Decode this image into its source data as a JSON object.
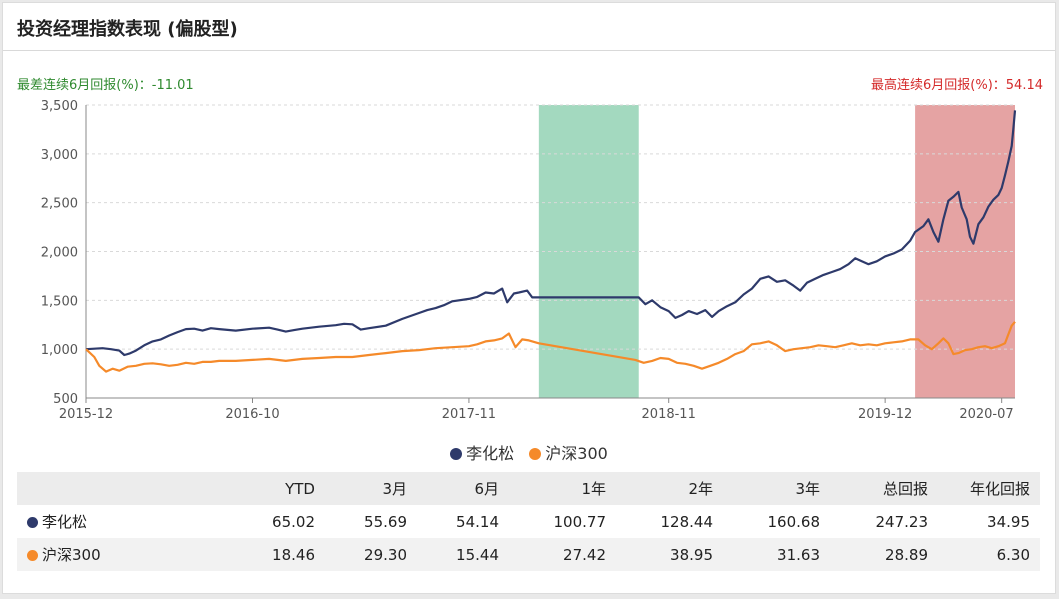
{
  "title": "投资经理指数表现 (偏股型)",
  "worst6m": "最差连续6月回报(%)：-11.01",
  "best6m": "最高连续6月回报(%)：54.14",
  "colors": {
    "manager": "#2e3a6b",
    "index": "#f58a2a",
    "good_band": "#a3d9bf",
    "bad_band": "#e5a3a3"
  },
  "chart_data": {
    "type": "line",
    "title": "",
    "ylim": [
      500,
      3500
    ],
    "yticks": [
      "500",
      "1,000",
      "1,500",
      "2,000",
      "2,500",
      "3,000",
      "3,500"
    ],
    "yvalues": [
      500,
      1000,
      1500,
      2000,
      2500,
      3000,
      3500
    ],
    "xlim": [
      "2015-12",
      "2020-07"
    ],
    "xticks": [
      {
        "label": "2015-12",
        "t": 0
      },
      {
        "label": "2016-10",
        "t": 10
      },
      {
        "label": "2017-11",
        "t": 23
      },
      {
        "label": "2018-11",
        "t": 35
      },
      {
        "label": "2019-12",
        "t": 48
      },
      {
        "label": "2020-07",
        "t": 55
      }
    ],
    "grid": true,
    "legend_position": "bottom",
    "bands": [
      {
        "type": "worst_6m",
        "start": 27.2,
        "end": 33.2
      },
      {
        "type": "best_6m",
        "start": 49.8,
        "end": 55.8
      }
    ],
    "series": [
      {
        "name": "李化松",
        "color": "#2e3a6b",
        "points": [
          [
            0,
            1000
          ],
          [
            1,
            1010
          ],
          [
            1.5,
            1000
          ],
          [
            2,
            985
          ],
          [
            2.3,
            940
          ],
          [
            2.6,
            955
          ],
          [
            3,
            985
          ],
          [
            3.5,
            1040
          ],
          [
            4,
            1080
          ],
          [
            4.5,
            1100
          ],
          [
            5,
            1140
          ],
          [
            5.5,
            1175
          ],
          [
            6,
            1205
          ],
          [
            6.5,
            1210
          ],
          [
            7,
            1190
          ],
          [
            7.5,
            1215
          ],
          [
            8,
            1205
          ],
          [
            9,
            1190
          ],
          [
            10,
            1210
          ],
          [
            11,
            1220
          ],
          [
            11.5,
            1200
          ],
          [
            12,
            1180
          ],
          [
            12.5,
            1195
          ],
          [
            13,
            1210
          ],
          [
            14,
            1230
          ],
          [
            15,
            1245
          ],
          [
            15.5,
            1260
          ],
          [
            16,
            1255
          ],
          [
            16.5,
            1200
          ],
          [
            17,
            1215
          ],
          [
            18,
            1240
          ],
          [
            19,
            1310
          ],
          [
            20,
            1370
          ],
          [
            20.5,
            1400
          ],
          [
            21,
            1420
          ],
          [
            21.5,
            1450
          ],
          [
            22,
            1490
          ],
          [
            23,
            1515
          ],
          [
            23.5,
            1535
          ],
          [
            24,
            1580
          ],
          [
            24.5,
            1570
          ],
          [
            25,
            1620
          ],
          [
            25.3,
            1480
          ],
          [
            25.7,
            1570
          ],
          [
            26,
            1580
          ],
          [
            26.5,
            1600
          ],
          [
            26.8,
            1530
          ],
          [
            27.2,
            1530
          ],
          [
            33.2,
            1530
          ],
          [
            33.6,
            1460
          ],
          [
            34,
            1500
          ],
          [
            34.5,
            1430
          ],
          [
            35,
            1390
          ],
          [
            35.4,
            1320
          ],
          [
            35.8,
            1350
          ],
          [
            36.2,
            1390
          ],
          [
            36.7,
            1360
          ],
          [
            37.2,
            1400
          ],
          [
            37.6,
            1330
          ],
          [
            38,
            1390
          ],
          [
            38.5,
            1440
          ],
          [
            39,
            1480
          ],
          [
            39.5,
            1560
          ],
          [
            40,
            1620
          ],
          [
            40.5,
            1720
          ],
          [
            41,
            1745
          ],
          [
            41.5,
            1690
          ],
          [
            42,
            1705
          ],
          [
            42.5,
            1650
          ],
          [
            42.9,
            1600
          ],
          [
            43.3,
            1680
          ],
          [
            43.8,
            1720
          ],
          [
            44.3,
            1760
          ],
          [
            44.8,
            1790
          ],
          [
            45.3,
            1820
          ],
          [
            45.8,
            1870
          ],
          [
            46.2,
            1930
          ],
          [
            46.6,
            1900
          ],
          [
            47,
            1870
          ],
          [
            47.5,
            1900
          ],
          [
            48,
            1950
          ],
          [
            48.5,
            1980
          ],
          [
            49,
            2020
          ],
          [
            49.5,
            2110
          ],
          [
            49.8,
            2200
          ],
          [
            50.3,
            2260
          ],
          [
            50.6,
            2330
          ],
          [
            50.9,
            2200
          ],
          [
            51.2,
            2100
          ],
          [
            51.5,
            2330
          ],
          [
            51.8,
            2520
          ],
          [
            52.1,
            2560
          ],
          [
            52.4,
            2610
          ],
          [
            52.6,
            2450
          ],
          [
            52.9,
            2330
          ],
          [
            53.1,
            2150
          ],
          [
            53.3,
            2080
          ],
          [
            53.6,
            2280
          ],
          [
            53.9,
            2350
          ],
          [
            54.2,
            2460
          ],
          [
            54.5,
            2530
          ],
          [
            54.8,
            2580
          ],
          [
            55,
            2650
          ],
          [
            55.2,
            2780
          ],
          [
            55.4,
            2920
          ],
          [
            55.6,
            3080
          ],
          [
            55.7,
            3250
          ],
          [
            55.8,
            3445
          ]
        ]
      },
      {
        "name": "沪深300",
        "color": "#f58a2a",
        "points": [
          [
            0,
            1000
          ],
          [
            0.5,
            920
          ],
          [
            0.8,
            830
          ],
          [
            1.2,
            770
          ],
          [
            1.6,
            800
          ],
          [
            2,
            780
          ],
          [
            2.5,
            820
          ],
          [
            3,
            830
          ],
          [
            3.5,
            850
          ],
          [
            4,
            855
          ],
          [
            4.5,
            845
          ],
          [
            5,
            830
          ],
          [
            5.5,
            840
          ],
          [
            6,
            860
          ],
          [
            6.5,
            850
          ],
          [
            7,
            870
          ],
          [
            7.5,
            870
          ],
          [
            8,
            880
          ],
          [
            9,
            880
          ],
          [
            10,
            890
          ],
          [
            11,
            900
          ],
          [
            12,
            880
          ],
          [
            13,
            900
          ],
          [
            14,
            910
          ],
          [
            15,
            920
          ],
          [
            16,
            920
          ],
          [
            17,
            940
          ],
          [
            18,
            960
          ],
          [
            19,
            980
          ],
          [
            20,
            990
          ],
          [
            21,
            1010
          ],
          [
            22,
            1020
          ],
          [
            23,
            1030
          ],
          [
            23.5,
            1050
          ],
          [
            24,
            1080
          ],
          [
            24.5,
            1090
          ],
          [
            25,
            1110
          ],
          [
            25.4,
            1160
          ],
          [
            25.8,
            1020
          ],
          [
            26.2,
            1100
          ],
          [
            26.6,
            1090
          ],
          [
            27.2,
            1060
          ],
          [
            33,
            890
          ],
          [
            33.5,
            860
          ],
          [
            34,
            880
          ],
          [
            34.5,
            910
          ],
          [
            35,
            900
          ],
          [
            35.5,
            860
          ],
          [
            36,
            850
          ],
          [
            36.5,
            830
          ],
          [
            37,
            800
          ],
          [
            37.5,
            830
          ],
          [
            38,
            860
          ],
          [
            38.5,
            900
          ],
          [
            39,
            950
          ],
          [
            39.5,
            980
          ],
          [
            40,
            1050
          ],
          [
            40.5,
            1060
          ],
          [
            41,
            1080
          ],
          [
            41.5,
            1040
          ],
          [
            42,
            980
          ],
          [
            42.5,
            1000
          ],
          [
            43,
            1010
          ],
          [
            43.5,
            1020
          ],
          [
            44,
            1040
          ],
          [
            44.5,
            1030
          ],
          [
            45,
            1020
          ],
          [
            45.5,
            1040
          ],
          [
            46,
            1060
          ],
          [
            46.5,
            1040
          ],
          [
            47,
            1050
          ],
          [
            47.5,
            1040
          ],
          [
            48,
            1060
          ],
          [
            48.5,
            1070
          ],
          [
            49,
            1080
          ],
          [
            49.5,
            1100
          ],
          [
            50,
            1100
          ],
          [
            50.4,
            1040
          ],
          [
            50.8,
            1000
          ],
          [
            51.2,
            1060
          ],
          [
            51.5,
            1110
          ],
          [
            51.8,
            1060
          ],
          [
            52.1,
            950
          ],
          [
            52.4,
            960
          ],
          [
            52.8,
            990
          ],
          [
            53.2,
            1000
          ],
          [
            53.6,
            1020
          ],
          [
            54,
            1030
          ],
          [
            54.4,
            1010
          ],
          [
            54.8,
            1030
          ],
          [
            55.2,
            1060
          ],
          [
            55.4,
            1150
          ],
          [
            55.6,
            1240
          ],
          [
            55.8,
            1280
          ]
        ]
      }
    ]
  },
  "table": {
    "headers": [
      "",
      "YTD",
      "3月",
      "6月",
      "1年",
      "2年",
      "3年",
      "总回报",
      "年化回报"
    ],
    "rows": [
      {
        "name": "李化松",
        "color": "#2e3a6b",
        "values": [
          "65.02",
          "55.69",
          "54.14",
          "100.77",
          "128.44",
          "160.68",
          "247.23",
          "34.95"
        ]
      },
      {
        "name": "沪深300",
        "color": "#f58a2a",
        "values": [
          "18.46",
          "29.30",
          "15.44",
          "27.42",
          "38.95",
          "31.63",
          "28.89",
          "6.30"
        ]
      }
    ]
  }
}
